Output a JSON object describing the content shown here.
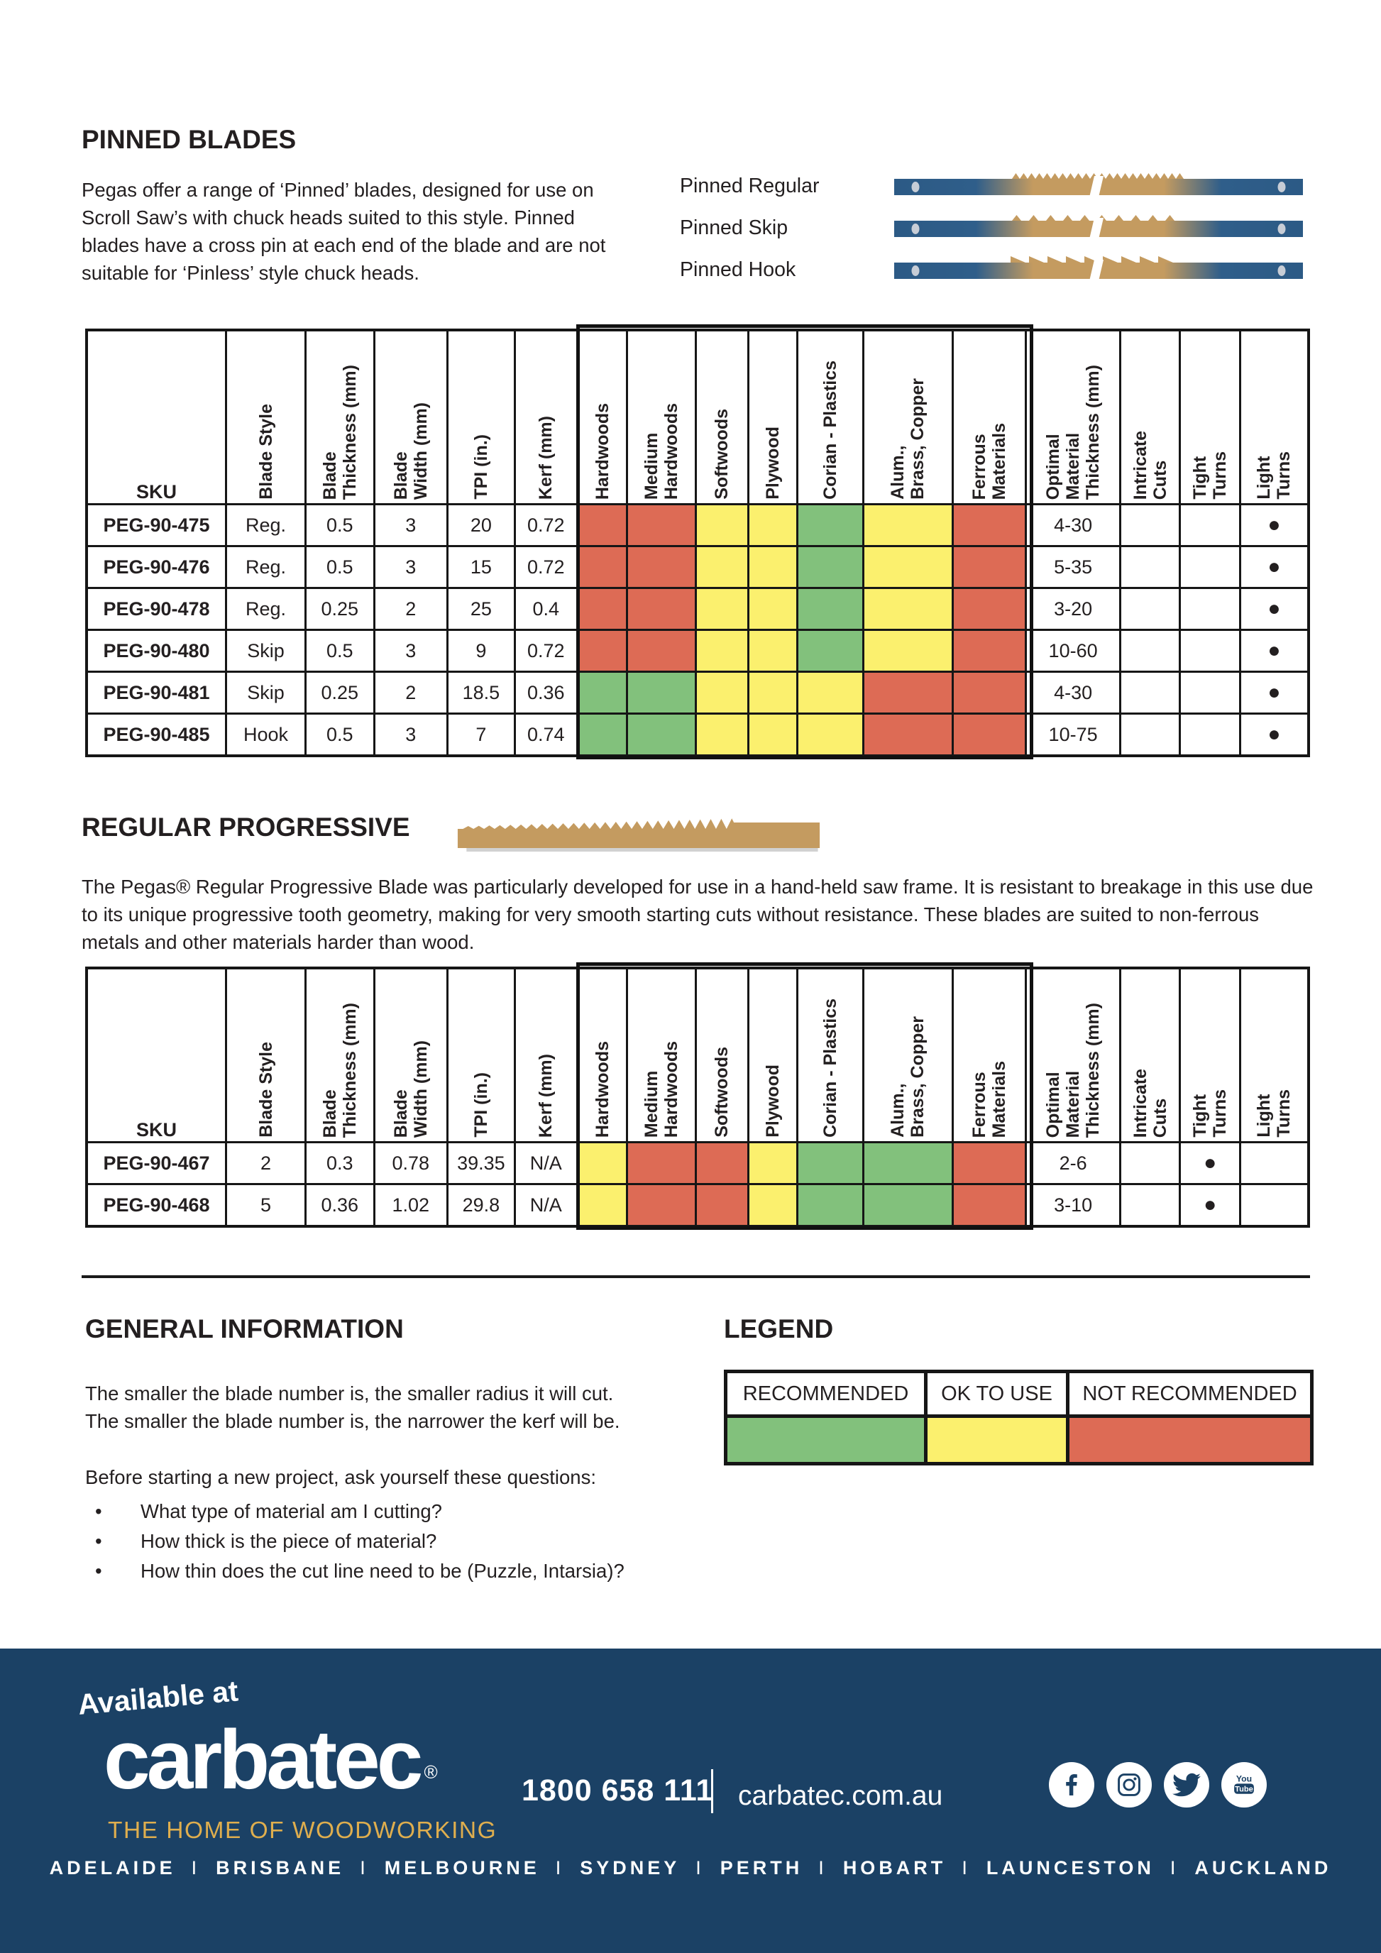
{
  "pinned": {
    "title": "PINNED BLADES",
    "intro": "Pegas offer a range of ‘Pinned’ blades, designed for use on Scroll Saw’s with chuck heads suited to this style. Pinned blades have a cross pin at each end of the blade and are not suitable for ‘Pinless’ style chuck heads.",
    "blade_rows": [
      {
        "label": "Pinned Regular"
      },
      {
        "label": "Pinned Skip"
      },
      {
        "label": "Pinned Hook"
      }
    ]
  },
  "col_headers": [
    "SKU",
    "Blade Style",
    "Blade\nThickness (mm)",
    "Blade\nWidth (mm)",
    "TPI (in.)",
    "Kerf (mm)",
    "Hardwoods",
    "Medium\nHardwoods",
    "Softwoods",
    "Plywood",
    "Corian  - Plastics",
    "Alum.,\nBrass, Copper",
    "Ferrous\nMaterials",
    "Optimal\nMaterial\nThickness (mm)",
    "Intricate\nCuts",
    "Tight\nTurns",
    "Light\nTurns"
  ],
  "ratings_key": {
    "rec": "#82C17C",
    "ok": "#FBF06E",
    "nr": "#DD6B55"
  },
  "tables": [
    {
      "name": "pinned-blades",
      "rows": [
        {
          "sku": "PEG-90-475",
          "specs": [
            "Reg.",
            "0.5",
            "3",
            "20",
            "0.72"
          ],
          "ratings": [
            "nr",
            "nr",
            "ok",
            "ok",
            "rec",
            "ok",
            "nr"
          ],
          "optimal": "4-30",
          "marks": [
            "",
            "",
            "●"
          ]
        },
        {
          "sku": "PEG-90-476",
          "specs": [
            "Reg.",
            "0.5",
            "3",
            "15",
            "0.72"
          ],
          "ratings": [
            "nr",
            "nr",
            "ok",
            "ok",
            "rec",
            "ok",
            "nr"
          ],
          "optimal": "5-35",
          "marks": [
            "",
            "",
            "●"
          ]
        },
        {
          "sku": "PEG-90-478",
          "specs": [
            "Reg.",
            "0.25",
            "2",
            "25",
            "0.4"
          ],
          "ratings": [
            "nr",
            "nr",
            "ok",
            "ok",
            "rec",
            "ok",
            "nr"
          ],
          "optimal": "3-20",
          "marks": [
            "",
            "",
            "●"
          ]
        },
        {
          "sku": "PEG-90-480",
          "specs": [
            "Skip",
            "0.5",
            "3",
            "9",
            "0.72"
          ],
          "ratings": [
            "nr",
            "nr",
            "ok",
            "ok",
            "rec",
            "ok",
            "nr"
          ],
          "optimal": "10-60",
          "marks": [
            "",
            "",
            "●"
          ]
        },
        {
          "sku": "PEG-90-481",
          "specs": [
            "Skip",
            "0.25",
            "2",
            "18.5",
            "0.36"
          ],
          "ratings": [
            "rec",
            "rec",
            "ok",
            "ok",
            "ok",
            "nr",
            "nr"
          ],
          "optimal": "4-30",
          "marks": [
            "",
            "",
            "●"
          ]
        },
        {
          "sku": "PEG-90-485",
          "specs": [
            "Hook",
            "0.5",
            "3",
            "7",
            "0.74"
          ],
          "ratings": [
            "rec",
            "rec",
            "ok",
            "ok",
            "ok",
            "nr",
            "nr"
          ],
          "optimal": "10-75",
          "marks": [
            "",
            "",
            "●"
          ]
        }
      ]
    },
    {
      "name": "regular-progressive",
      "rows": [
        {
          "sku": "PEG-90-467",
          "specs": [
            "2",
            "0.3",
            "0.78",
            "39.35",
            "N/A"
          ],
          "ratings": [
            "ok",
            "nr",
            "nr",
            "ok",
            "rec",
            "rec",
            "nr"
          ],
          "optimal": "2-6",
          "marks": [
            "",
            "●",
            ""
          ]
        },
        {
          "sku": "PEG-90-468",
          "specs": [
            "5",
            "0.36",
            "1.02",
            "29.8",
            "N/A"
          ],
          "ratings": [
            "ok",
            "nr",
            "nr",
            "ok",
            "rec",
            "rec",
            "nr"
          ],
          "optimal": "3-10",
          "marks": [
            "",
            "●",
            ""
          ]
        }
      ]
    }
  ],
  "progressive": {
    "title": "REGULAR PROGRESSIVE",
    "intro": "The Pegas® Regular Progressive Blade was particularly developed for use in a hand-held saw frame. It is resistant to breakage in this use due to its unique progressive tooth geometry, making for very smooth starting cuts without resistance. These blades are suited to non-ferrous metals and other materials harder than wood."
  },
  "general": {
    "title": "GENERAL INFORMATION",
    "line1": "The smaller the blade number is, the smaller radius it will cut.",
    "line2": "The smaller the blade number is, the narrower the kerf will be.",
    "prompt": "Before starting a new project, ask yourself these questions:",
    "bullets": [
      "What type of material am I cutting?",
      "How thick is the piece of material?",
      "How thin does the cut line need to be (Puzzle, Intarsia)?"
    ]
  },
  "legend": {
    "title": "LEGEND",
    "items": [
      {
        "label": "RECOMMENDED",
        "key": "rec"
      },
      {
        "label": "OK TO USE",
        "key": "ok"
      },
      {
        "label": "NOT RECOMMENDED",
        "key": "nr"
      }
    ]
  },
  "footer": {
    "available_at": "Available at",
    "brand": "carbatec",
    "reg_mark": "®",
    "tagline": "THE HOME OF WOODWORKING",
    "phone": "1800 658 111",
    "website": "carbatec.com.au",
    "social": [
      "facebook",
      "instagram",
      "twitter",
      "youtube"
    ],
    "youtube_text": {
      "top": "You",
      "bottom": "Tube"
    },
    "cities": [
      "ADELAIDE",
      "BRISBANE",
      "MELBOURNE",
      "SYDNEY",
      "PERTH",
      "HOBART",
      "LAUNCESTON",
      "AUCKLAND"
    ],
    "colors": {
      "navy": "#1B4165",
      "gold": "#DFAE4E"
    }
  }
}
